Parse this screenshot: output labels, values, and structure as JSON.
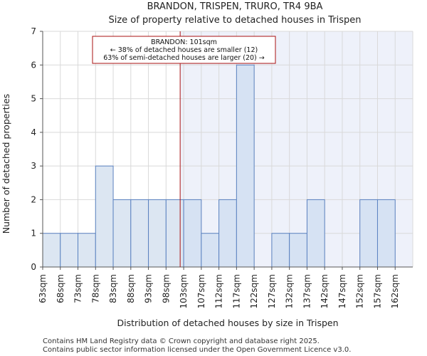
{
  "chart_data": {
    "type": "bar",
    "title": "BRANDON, TRISPEN, TRURO, TR4 9BA",
    "subtitle": "Size of property relative to detached houses in Trispen",
    "xlabel": "Distribution of detached houses by size in Trispen",
    "ylabel": "Number of detached properties",
    "categories": [
      "63sqm",
      "68sqm",
      "73sqm",
      "78sqm",
      "83sqm",
      "88sqm",
      "93sqm",
      "98sqm",
      "103sqm",
      "107sqm",
      "112sqm",
      "117sqm",
      "122sqm",
      "127sqm",
      "132sqm",
      "137sqm",
      "142sqm",
      "147sqm",
      "152sqm",
      "157sqm",
      "162sqm"
    ],
    "values": [
      1,
      1,
      1,
      3,
      2,
      2,
      2,
      2,
      2,
      1,
      2,
      6,
      0,
      1,
      1,
      2,
      0,
      0,
      2,
      2,
      0
    ],
    "ylim": [
      0,
      7
    ],
    "yticks": [
      0,
      1,
      2,
      3,
      4,
      5,
      6,
      7
    ],
    "grid": true,
    "marker": {
      "value_sqm": 101,
      "position_in_bins": 7.8,
      "lines": [
        "BRANDON: 101sqm",
        "← 38% of detached houses are smaller (12)",
        "63% of semi-detached houses are larger (20) →"
      ]
    },
    "colors": {
      "bar_left": "#dce6f2",
      "bar_right": "#d6e2f3",
      "bar_edge": "#5b82c0",
      "shade_right": "#eef1fa",
      "marker": "#aa1111",
      "grid": "#d9d9d9"
    }
  },
  "footer": {
    "line1": "Contains HM Land Registry data © Crown copyright and database right 2025.",
    "line2": "Contains public sector information licensed under the Open Government Licence v3.0."
  }
}
